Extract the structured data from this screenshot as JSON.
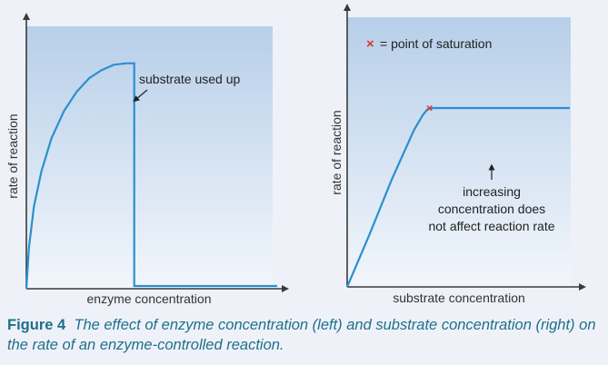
{
  "chart_data": [
    {
      "type": "line",
      "xlabel": "enzyme concentration",
      "ylabel": "rate of reaction",
      "xlim": [
        0,
        10
      ],
      "ylim": [
        0,
        10
      ],
      "grid": false,
      "series": [
        {
          "x": [
            0,
            0.1,
            0.3,
            0.6,
            1.0,
            1.5,
            2.0,
            2.5,
            3.0,
            3.5,
            4.0,
            4.3,
            4.3,
            4.3,
            10
          ],
          "y": [
            0,
            1.5,
            3.0,
            4.3,
            5.5,
            6.5,
            7.2,
            7.7,
            8.0,
            8.2,
            8.25,
            8.25,
            8.25,
            0.1,
            0.1
          ]
        }
      ],
      "annotations": [
        {
          "text": "substrate used up",
          "x": 4.3,
          "y": 8.25
        }
      ]
    },
    {
      "type": "line",
      "xlabel": "substrate concentration",
      "ylabel": "rate of reaction",
      "xlim": [
        0,
        10
      ],
      "ylim": [
        0,
        10
      ],
      "grid": false,
      "series": [
        {
          "x": [
            0,
            1.0,
            2.0,
            3.0,
            3.4,
            3.6,
            3.8,
            10
          ],
          "y": [
            0,
            1.9,
            3.9,
            5.7,
            6.25,
            6.45,
            6.5,
            6.5
          ]
        }
      ],
      "saturation_point": {
        "x": 3.7,
        "y": 6.5
      },
      "legend": {
        "marker": "×",
        "text": "= point of saturation",
        "marker_color": "#d03a30"
      },
      "annotations": [
        {
          "lines": [
            "increasing",
            "concentration does",
            "not affect reaction rate"
          ],
          "x": 6.2,
          "y": 6.5
        }
      ]
    }
  ],
  "caption": {
    "label": "Figure 4",
    "text": "The effect of enzyme concentration (left) and substrate concentration (right) on the rate of an enzyme-controlled reaction."
  },
  "colors": {
    "line": "#2a8fd0",
    "axis": "#3a3a3a",
    "caption": "#1f6f8b",
    "panel_top": "#b7cfe9",
    "panel_bottom": "#f2f6fb"
  }
}
